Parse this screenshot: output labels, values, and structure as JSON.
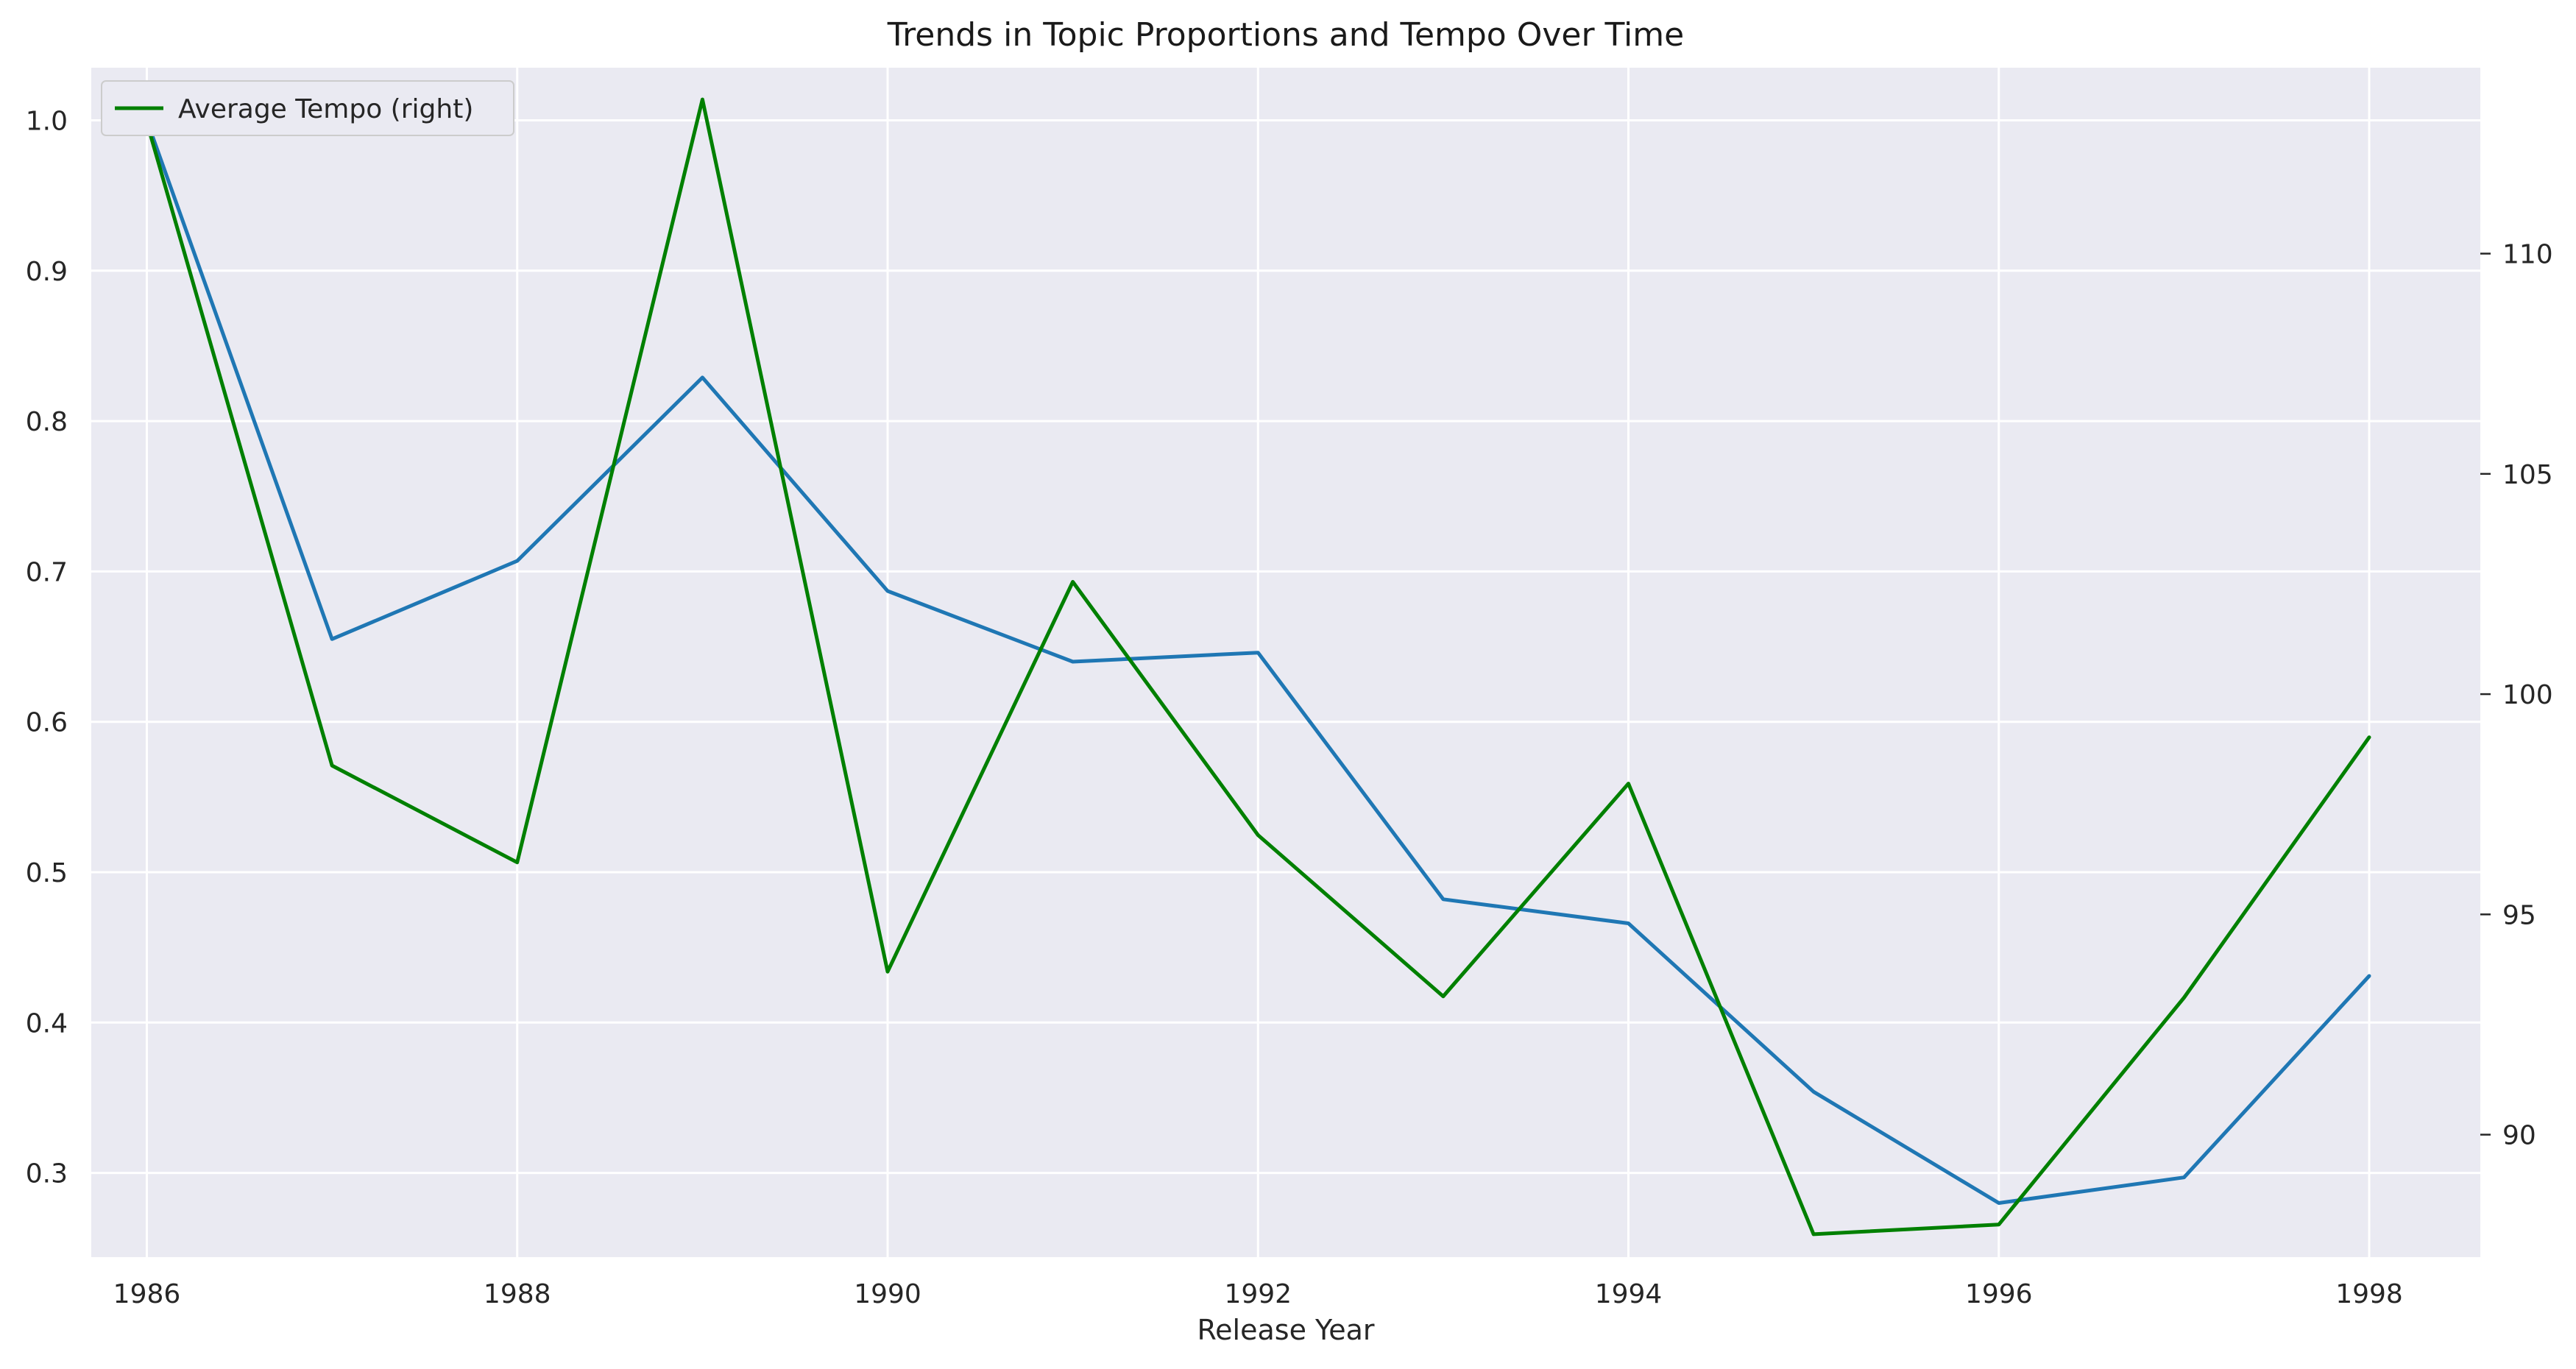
{
  "chart_data": {
    "type": "line",
    "title": "Trends in Topic Proportions and Tempo Over Time",
    "xlabel": "Release Year",
    "ylabel": "",
    "ylabel_right": "",
    "x": [
      1986,
      1987,
      1988,
      1989,
      1990,
      1991,
      1992,
      1993,
      1994,
      1995,
      1996,
      1997,
      1998
    ],
    "x_ticks": [
      1986,
      1988,
      1990,
      1992,
      1994,
      1996,
      1998
    ],
    "xlim": [
      1985.7,
      1998.6
    ],
    "ylim": [
      0.244,
      1.035
    ],
    "y_ticks": [
      0.3,
      0.4,
      0.5,
      0.6,
      0.7,
      0.8,
      0.9,
      1.0
    ],
    "ylim_right": [
      87.22,
      114.22
    ],
    "y_ticks_right": [
      90,
      95,
      100,
      105,
      110
    ],
    "grid": true,
    "legend_position": "top-left",
    "series": [
      {
        "name": "",
        "axis": "left",
        "color": "#1f77b4",
        "values": [
          1.0,
          0.655,
          0.707,
          0.829,
          0.687,
          0.64,
          0.646,
          0.482,
          0.466,
          0.354,
          0.28,
          0.297,
          0.431
        ]
      },
      {
        "name": "Average Tempo (right)",
        "axis": "right",
        "color": "#008000",
        "values": [
          112.98,
          98.38,
          96.18,
          113.5,
          93.7,
          102.55,
          96.8,
          93.14,
          97.97,
          87.74,
          87.96,
          93.11,
          99.02
        ]
      }
    ],
    "legend": [
      "Average Tempo (right)"
    ]
  },
  "colors": {
    "plot_background": "#eaeaf2",
    "grid": "#ffffff",
    "text": "#262626"
  }
}
